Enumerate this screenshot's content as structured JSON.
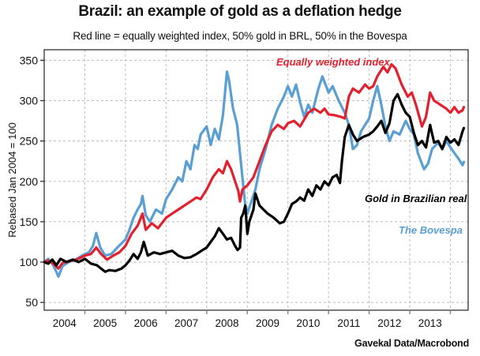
{
  "chart_data": {
    "type": "line",
    "title": "Brazil: an example of gold as a deflation hedge",
    "subtitle": "Red line = equally weighted index, 50% gold in BRL, 50% in the Bovespa",
    "xlabel": "",
    "ylabel": "Rebased Jan 2004 = 100",
    "source": "Gavekal Data/Macrobond",
    "xlim": [
      2004.0,
      2014.45
    ],
    "ylim": [
      40,
      360
    ],
    "grid": true,
    "x_tick_labels": [
      "2004",
      "2005",
      "2006",
      "2007",
      "2008",
      "2009",
      "2010",
      "2011",
      "2012",
      "2013"
    ],
    "y_ticks": [
      50,
      100,
      150,
      200,
      250,
      300,
      350
    ],
    "series": [
      {
        "name": "The Bovespa",
        "color": "#5a9fd4",
        "label_placement": "lower-right",
        "points": [
          [
            2004.0,
            100
          ],
          [
            2004.1,
            104
          ],
          [
            2004.2,
            98
          ],
          [
            2004.3,
            88
          ],
          [
            2004.35,
            82
          ],
          [
            2004.45,
            95
          ],
          [
            2004.6,
            100
          ],
          [
            2004.8,
            104
          ],
          [
            2005.0,
            110
          ],
          [
            2005.1,
            112
          ],
          [
            2005.2,
            120
          ],
          [
            2005.28,
            136
          ],
          [
            2005.38,
            118
          ],
          [
            2005.5,
            108
          ],
          [
            2005.65,
            110
          ],
          [
            2005.8,
            118
          ],
          [
            2006.0,
            128
          ],
          [
            2006.1,
            140
          ],
          [
            2006.2,
            155
          ],
          [
            2006.3,
            165
          ],
          [
            2006.38,
            172
          ],
          [
            2006.42,
            182
          ],
          [
            2006.5,
            158
          ],
          [
            2006.6,
            150
          ],
          [
            2006.75,
            165
          ],
          [
            2006.9,
            160
          ],
          [
            2007.0,
            178
          ],
          [
            2007.15,
            190
          ],
          [
            2007.3,
            205
          ],
          [
            2007.4,
            200
          ],
          [
            2007.5,
            225
          ],
          [
            2007.6,
            215
          ],
          [
            2007.7,
            245
          ],
          [
            2007.78,
            240
          ],
          [
            2007.85,
            258
          ],
          [
            2008.0,
            268
          ],
          [
            2008.1,
            245
          ],
          [
            2008.2,
            265
          ],
          [
            2008.3,
            252
          ],
          [
            2008.4,
            282
          ],
          [
            2008.5,
            336
          ],
          [
            2008.55,
            325
          ],
          [
            2008.65,
            290
          ],
          [
            2008.75,
            270
          ],
          [
            2008.85,
            220
          ],
          [
            2008.95,
            170
          ],
          [
            2009.0,
            160
          ],
          [
            2009.1,
            175
          ],
          [
            2009.2,
            190
          ],
          [
            2009.3,
            215
          ],
          [
            2009.45,
            240
          ],
          [
            2009.6,
            270
          ],
          [
            2009.75,
            290
          ],
          [
            2009.9,
            305
          ],
          [
            2010.0,
            318
          ],
          [
            2010.1,
            305
          ],
          [
            2010.2,
            320
          ],
          [
            2010.3,
            298
          ],
          [
            2010.4,
            280
          ],
          [
            2010.5,
            295
          ],
          [
            2010.6,
            285
          ],
          [
            2010.75,
            315
          ],
          [
            2010.85,
            330
          ],
          [
            2011.0,
            310
          ],
          [
            2011.1,
            318
          ],
          [
            2011.25,
            300
          ],
          [
            2011.4,
            285
          ],
          [
            2011.5,
            270
          ],
          [
            2011.6,
            240
          ],
          [
            2011.7,
            245
          ],
          [
            2011.8,
            262
          ],
          [
            2012.0,
            278
          ],
          [
            2012.1,
            300
          ],
          [
            2012.2,
            318
          ],
          [
            2012.3,
            295
          ],
          [
            2012.4,
            268
          ],
          [
            2012.5,
            250
          ],
          [
            2012.6,
            262
          ],
          [
            2012.75,
            258
          ],
          [
            2012.9,
            275
          ],
          [
            2013.0,
            265
          ],
          [
            2013.1,
            258
          ],
          [
            2013.2,
            235
          ],
          [
            2013.35,
            215
          ],
          [
            2013.45,
            222
          ],
          [
            2013.55,
            240
          ],
          [
            2013.7,
            248
          ],
          [
            2013.8,
            240
          ],
          [
            2013.9,
            250
          ],
          [
            2014.0,
            242
          ],
          [
            2014.1,
            235
          ],
          [
            2014.2,
            228
          ],
          [
            2014.3,
            220
          ],
          [
            2014.33,
            224
          ]
        ]
      },
      {
        "name": "Equally weighted index",
        "color": "#e2202e",
        "label_placement": "top-center",
        "points": [
          [
            2004.0,
            100
          ],
          [
            2004.1,
            102
          ],
          [
            2004.25,
            97
          ],
          [
            2004.35,
            92
          ],
          [
            2004.45,
            99
          ],
          [
            2004.6,
            101
          ],
          [
            2004.8,
            103
          ],
          [
            2005.0,
            108
          ],
          [
            2005.15,
            110
          ],
          [
            2005.28,
            118
          ],
          [
            2005.4,
            110
          ],
          [
            2005.55,
            103
          ],
          [
            2005.7,
            108
          ],
          [
            2005.85,
            112
          ],
          [
            2006.0,
            120
          ],
          [
            2006.15,
            135
          ],
          [
            2006.3,
            145
          ],
          [
            2006.42,
            160
          ],
          [
            2006.5,
            140
          ],
          [
            2006.65,
            148
          ],
          [
            2006.8,
            142
          ],
          [
            2007.0,
            155
          ],
          [
            2007.15,
            160
          ],
          [
            2007.3,
            165
          ],
          [
            2007.45,
            170
          ],
          [
            2007.6,
            175
          ],
          [
            2007.75,
            180
          ],
          [
            2007.85,
            178
          ],
          [
            2008.0,
            190
          ],
          [
            2008.15,
            205
          ],
          [
            2008.3,
            215
          ],
          [
            2008.4,
            210
          ],
          [
            2008.5,
            225
          ],
          [
            2008.6,
            215
          ],
          [
            2008.7,
            200
          ],
          [
            2008.78,
            188
          ],
          [
            2008.82,
            175
          ],
          [
            2008.88,
            190
          ],
          [
            2009.0,
            195
          ],
          [
            2009.15,
            205
          ],
          [
            2009.3,
            225
          ],
          [
            2009.45,
            245
          ],
          [
            2009.6,
            262
          ],
          [
            2009.75,
            270
          ],
          [
            2009.9,
            265
          ],
          [
            2010.0,
            272
          ],
          [
            2010.15,
            275
          ],
          [
            2010.3,
            268
          ],
          [
            2010.5,
            285
          ],
          [
            2010.65,
            290
          ],
          [
            2010.8,
            285
          ],
          [
            2010.9,
            290
          ],
          [
            2011.0,
            283
          ],
          [
            2011.15,
            282
          ],
          [
            2011.3,
            280
          ],
          [
            2011.4,
            278
          ],
          [
            2011.5,
            305
          ],
          [
            2011.6,
            315
          ],
          [
            2011.75,
            310
          ],
          [
            2011.9,
            320
          ],
          [
            2012.0,
            315
          ],
          [
            2012.1,
            318
          ],
          [
            2012.2,
            330
          ],
          [
            2012.35,
            342
          ],
          [
            2012.45,
            335
          ],
          [
            2012.55,
            345
          ],
          [
            2012.65,
            340
          ],
          [
            2012.8,
            320
          ],
          [
            2012.95,
            305
          ],
          [
            2013.05,
            310
          ],
          [
            2013.15,
            295
          ],
          [
            2013.3,
            268
          ],
          [
            2013.4,
            280
          ],
          [
            2013.5,
            310
          ],
          [
            2013.6,
            300
          ],
          [
            2013.75,
            295
          ],
          [
            2013.9,
            290
          ],
          [
            2014.0,
            285
          ],
          [
            2014.1,
            292
          ],
          [
            2014.2,
            285
          ],
          [
            2014.3,
            288
          ],
          [
            2014.33,
            292
          ]
        ]
      },
      {
        "name": "Gold in Brazilian real",
        "color": "#000000",
        "label_placement": "right-middle",
        "points": [
          [
            2004.0,
            100
          ],
          [
            2004.1,
            98
          ],
          [
            2004.2,
            103
          ],
          [
            2004.3,
            96
          ],
          [
            2004.4,
            104
          ],
          [
            2004.55,
            100
          ],
          [
            2004.7,
            103
          ],
          [
            2004.85,
            100
          ],
          [
            2005.0,
            104
          ],
          [
            2005.15,
            98
          ],
          [
            2005.3,
            96
          ],
          [
            2005.4,
            92
          ],
          [
            2005.5,
            88
          ],
          [
            2005.6,
            90
          ],
          [
            2005.75,
            89
          ],
          [
            2005.9,
            92
          ],
          [
            2006.0,
            96
          ],
          [
            2006.1,
            102
          ],
          [
            2006.2,
            110
          ],
          [
            2006.3,
            104
          ],
          [
            2006.38,
            112
          ],
          [
            2006.45,
            125
          ],
          [
            2006.55,
            108
          ],
          [
            2006.7,
            112
          ],
          [
            2006.85,
            110
          ],
          [
            2007.0,
            112
          ],
          [
            2007.15,
            114
          ],
          [
            2007.3,
            108
          ],
          [
            2007.45,
            105
          ],
          [
            2007.6,
            106
          ],
          [
            2007.75,
            110
          ],
          [
            2007.9,
            115
          ],
          [
            2008.0,
            118
          ],
          [
            2008.1,
            125
          ],
          [
            2008.2,
            132
          ],
          [
            2008.3,
            142
          ],
          [
            2008.4,
            135
          ],
          [
            2008.5,
            128
          ],
          [
            2008.6,
            130
          ],
          [
            2008.7,
            120
          ],
          [
            2008.76,
            115
          ],
          [
            2008.82,
            118
          ],
          [
            2008.85,
            155
          ],
          [
            2008.9,
            160
          ],
          [
            2008.95,
            170
          ],
          [
            2009.0,
            135
          ],
          [
            2009.05,
            150
          ],
          [
            2009.15,
            165
          ],
          [
            2009.2,
            185
          ],
          [
            2009.3,
            170
          ],
          [
            2009.4,
            165
          ],
          [
            2009.5,
            160
          ],
          [
            2009.65,
            155
          ],
          [
            2009.8,
            148
          ],
          [
            2009.9,
            150
          ],
          [
            2010.0,
            160
          ],
          [
            2010.1,
            172
          ],
          [
            2010.2,
            175
          ],
          [
            2010.3,
            180
          ],
          [
            2010.4,
            176
          ],
          [
            2010.5,
            190
          ],
          [
            2010.6,
            182
          ],
          [
            2010.7,
            195
          ],
          [
            2010.8,
            190
          ],
          [
            2010.9,
            200
          ],
          [
            2011.0,
            195
          ],
          [
            2011.1,
            205
          ],
          [
            2011.2,
            208
          ],
          [
            2011.28,
            198
          ],
          [
            2011.33,
            225
          ],
          [
            2011.4,
            255
          ],
          [
            2011.5,
            270
          ],
          [
            2011.6,
            258
          ],
          [
            2011.7,
            250
          ],
          [
            2011.85,
            255
          ],
          [
            2012.0,
            258
          ],
          [
            2012.1,
            262
          ],
          [
            2012.2,
            268
          ],
          [
            2012.3,
            275
          ],
          [
            2012.4,
            260
          ],
          [
            2012.5,
            272
          ],
          [
            2012.6,
            300
          ],
          [
            2012.7,
            308
          ],
          [
            2012.8,
            295
          ],
          [
            2012.9,
            285
          ],
          [
            2013.0,
            280
          ],
          [
            2013.1,
            260
          ],
          [
            2013.2,
            245
          ],
          [
            2013.3,
            250
          ],
          [
            2013.4,
            242
          ],
          [
            2013.5,
            270
          ],
          [
            2013.6,
            248
          ],
          [
            2013.7,
            250
          ],
          [
            2013.8,
            240
          ],
          [
            2013.9,
            255
          ],
          [
            2014.0,
            248
          ],
          [
            2014.1,
            252
          ],
          [
            2014.2,
            245
          ],
          [
            2014.3,
            262
          ],
          [
            2014.33,
            266
          ]
        ]
      }
    ]
  }
}
